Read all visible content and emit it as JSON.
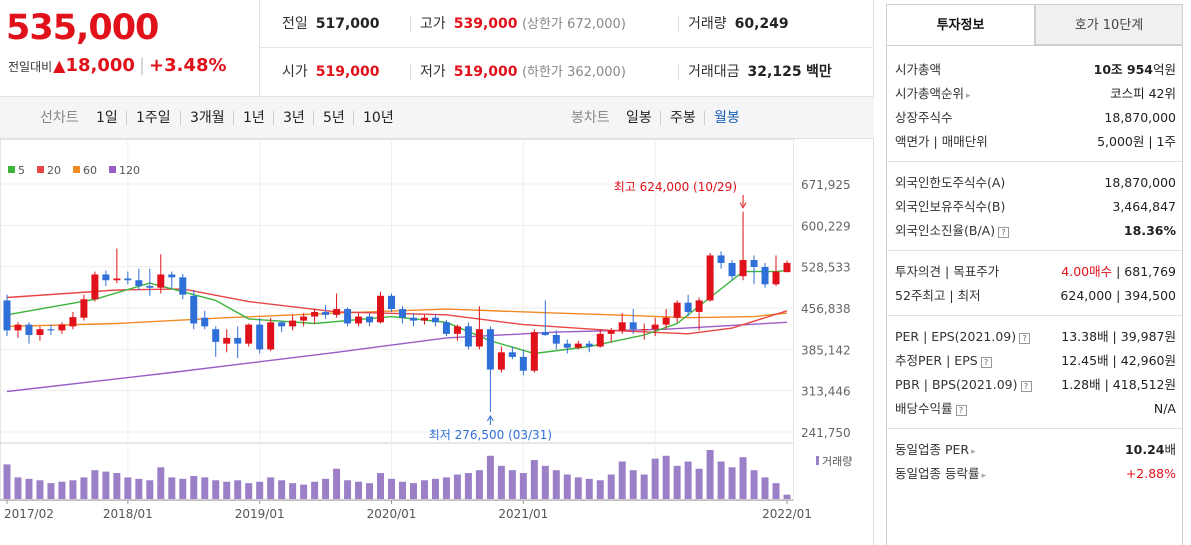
{
  "price": {
    "current": "535,000",
    "change_label": "전일대비",
    "change_arrow": "▲",
    "change_amount": "18,000",
    "change_pct": "+3.48%"
  },
  "info": {
    "prev_close": {
      "label": "전일",
      "value": "517,000"
    },
    "high": {
      "label": "고가",
      "value": "539,000",
      "sub": "(상한가 672,000)"
    },
    "volume": {
      "label": "거래량",
      "value": "60,249"
    },
    "open": {
      "label": "시가",
      "value": "519,000"
    },
    "low": {
      "label": "저가",
      "value": "519,000",
      "sub": "(하한가 362,000)"
    },
    "amount": {
      "label": "거래대금",
      "value": "32,125",
      "unit": "백만"
    }
  },
  "period_tabs": {
    "title": "선차트",
    "items": [
      "1일",
      "1주일",
      "3개월",
      "1년",
      "3년",
      "5년",
      "10년"
    ]
  },
  "candle_tabs": {
    "title": "봉차트",
    "items": [
      "일봉",
      "주봉",
      "월봉"
    ],
    "active": "월봉"
  },
  "chart_data": {
    "type": "candlestick",
    "interval": "monthly",
    "legend": [
      "5",
      "20",
      "60",
      "120"
    ],
    "legend_colors": [
      "#3cb43c",
      "#e84545",
      "#f08a24",
      "#9a5cc6"
    ],
    "up_color": "#e0111a",
    "down_color": "#2f6fd8",
    "y_ticks": [
      671925,
      600229,
      528533,
      456838,
      385142,
      313446,
      241750
    ],
    "ylim": [
      241750,
      671925
    ],
    "x_ticks": [
      "2017/02",
      "2018/01",
      "2019/01",
      "2020/01",
      "2021/01",
      "2022/01"
    ],
    "annotations": {
      "high": {
        "label": "최고",
        "value": "624,000",
        "date": "(10/29)"
      },
      "low": {
        "label": "최저",
        "value": "276,500",
        "date": "(03/31)"
      }
    },
    "volume_label": "거래량",
    "candles": [
      [
        470000,
        480000,
        408000,
        418000
      ],
      [
        418000,
        432000,
        405000,
        428000
      ],
      [
        428000,
        432000,
        395000,
        410000
      ],
      [
        410000,
        425000,
        400000,
        420000
      ],
      [
        420000,
        428000,
        410000,
        418000
      ],
      [
        418000,
        432000,
        412000,
        428000
      ],
      [
        425000,
        450000,
        420000,
        441000
      ],
      [
        440000,
        480000,
        435000,
        472000
      ],
      [
        472000,
        520000,
        468000,
        515000
      ],
      [
        515000,
        522000,
        495000,
        505000
      ],
      [
        505000,
        560000,
        500000,
        508000
      ],
      [
        508000,
        520000,
        498000,
        505000
      ],
      [
        505000,
        525000,
        488000,
        495000
      ],
      [
        495000,
        525000,
        478000,
        492000
      ],
      [
        492000,
        550000,
        482000,
        515000
      ],
      [
        515000,
        520000,
        490000,
        510000
      ],
      [
        510000,
        516000,
        472000,
        480000
      ],
      [
        478000,
        488000,
        420000,
        430000
      ],
      [
        440000,
        452000,
        420000,
        425000
      ],
      [
        420000,
        425000,
        372000,
        398000
      ],
      [
        395000,
        420000,
        380000,
        405000
      ],
      [
        405000,
        425000,
        370000,
        395000
      ],
      [
        395000,
        430000,
        390000,
        428000
      ],
      [
        428000,
        440000,
        378000,
        385000
      ],
      [
        385000,
        440000,
        382000,
        432000
      ],
      [
        432000,
        435000,
        415000,
        425000
      ],
      [
        425000,
        445000,
        418000,
        435000
      ],
      [
        435000,
        448000,
        425000,
        442000
      ],
      [
        442000,
        455000,
        430000,
        450000
      ],
      [
        450000,
        462000,
        438000,
        445000
      ],
      [
        445000,
        482000,
        440000,
        455000
      ],
      [
        455000,
        458000,
        425000,
        430000
      ],
      [
        430000,
        448000,
        425000,
        442000
      ],
      [
        442000,
        448000,
        425000,
        432000
      ],
      [
        432000,
        485000,
        430000,
        478000
      ],
      [
        478000,
        482000,
        450000,
        455000
      ],
      [
        455000,
        460000,
        430000,
        440000
      ],
      [
        440000,
        448000,
        425000,
        435000
      ],
      [
        435000,
        445000,
        428000,
        440000
      ],
      [
        440000,
        446000,
        425000,
        432000
      ],
      [
        432000,
        436000,
        408000,
        412000
      ],
      [
        412000,
        428000,
        400000,
        425000
      ],
      [
        425000,
        432000,
        385000,
        390000
      ],
      [
        390000,
        460000,
        385000,
        420000
      ],
      [
        420000,
        425000,
        276500,
        350000
      ],
      [
        350000,
        390000,
        345000,
        380000
      ],
      [
        380000,
        390000,
        368000,
        372000
      ],
      [
        372000,
        385000,
        340000,
        348000
      ],
      [
        348000,
        420000,
        345000,
        415000
      ],
      [
        415000,
        470000,
        408000,
        410000
      ],
      [
        410000,
        418000,
        385000,
        395000
      ],
      [
        395000,
        402000,
        378000,
        388000
      ],
      [
        388000,
        400000,
        385000,
        395000
      ],
      [
        395000,
        400000,
        380000,
        390000
      ],
      [
        390000,
        420000,
        388000,
        412000
      ],
      [
        412000,
        422000,
        398000,
        418000
      ],
      [
        418000,
        448000,
        412000,
        432000
      ],
      [
        432000,
        455000,
        412000,
        420000
      ],
      [
        420000,
        430000,
        402000,
        420000
      ],
      [
        420000,
        440000,
        408000,
        428000
      ],
      [
        428000,
        455000,
        420000,
        440000
      ],
      [
        440000,
        470000,
        432000,
        466000
      ],
      [
        466000,
        480000,
        442000,
        450000
      ],
      [
        450000,
        475000,
        418000,
        470000
      ],
      [
        470000,
        552000,
        468000,
        548000
      ],
      [
        548000,
        555000,
        525000,
        535000
      ],
      [
        535000,
        540000,
        505000,
        512000
      ],
      [
        512000,
        624000,
        505000,
        540000
      ],
      [
        540000,
        548000,
        498000,
        528000
      ],
      [
        528000,
        535000,
        492000,
        498000
      ],
      [
        498000,
        548000,
        495000,
        520000
      ],
      [
        519000,
        539000,
        519000,
        535000
      ]
    ],
    "ma": {
      "5": [
        [
          0,
          445000
        ],
        [
          8,
          472000
        ],
        [
          13,
          500000
        ],
        [
          19,
          470000
        ],
        [
          22,
          438000
        ],
        [
          28,
          430000
        ],
        [
          35,
          442000
        ],
        [
          40,
          432000
        ],
        [
          44,
          400000
        ],
        [
          48,
          378000
        ],
        [
          53,
          390000
        ],
        [
          58,
          410000
        ],
        [
          61,
          430000
        ],
        [
          64,
          475000
        ],
        [
          67,
          520000
        ],
        [
          70,
          520000
        ],
        [
          71,
          522000
        ]
      ],
      "20": [
        [
          0,
          475000
        ],
        [
          10,
          488000
        ],
        [
          16,
          490000
        ],
        [
          22,
          468000
        ],
        [
          30,
          450000
        ],
        [
          40,
          445000
        ],
        [
          47,
          428000
        ],
        [
          55,
          418000
        ],
        [
          62,
          412000
        ],
        [
          66,
          422000
        ],
        [
          71,
          452000
        ]
      ],
      "60": [
        [
          0,
          425000
        ],
        [
          10,
          430000
        ],
        [
          20,
          440000
        ],
        [
          30,
          448000
        ],
        [
          40,
          455000
        ],
        [
          50,
          448000
        ],
        [
          55,
          445000
        ],
        [
          62,
          440000
        ],
        [
          68,
          442000
        ],
        [
          71,
          448000
        ]
      ],
      "120": [
        [
          0,
          312000
        ],
        [
          15,
          345000
        ],
        [
          30,
          380000
        ],
        [
          40,
          405000
        ],
        [
          50,
          415000
        ],
        [
          60,
          420000
        ],
        [
          71,
          432000
        ]
      ]
    },
    "volumes": [
      48,
      30,
      28,
      26,
      22,
      24,
      26,
      30,
      40,
      38,
      36,
      30,
      28,
      26,
      44,
      30,
      28,
      32,
      30,
      26,
      24,
      26,
      22,
      24,
      30,
      26,
      22,
      20,
      24,
      28,
      42,
      26,
      24,
      22,
      36,
      28,
      24,
      22,
      26,
      28,
      30,
      34,
      36,
      40,
      60,
      46,
      40,
      36,
      54,
      46,
      40,
      34,
      30,
      28,
      26,
      34,
      52,
      40,
      34,
      56,
      60,
      46,
      52,
      42,
      68,
      52,
      44,
      58,
      40,
      30,
      22,
      6
    ]
  },
  "right_panel": {
    "tabs": [
      "투자정보",
      "호가 10단계"
    ],
    "market_cap": {
      "label": "시가총액",
      "value_a": "10조 954",
      "value_b": "억원"
    },
    "market_cap_rank": {
      "label": "시가총액순위",
      "value": "코스피 42위"
    },
    "shares": {
      "label": "상장주식수",
      "value": "18,870,000"
    },
    "par_unit": {
      "label_a": "액면가",
      "label_b": "매매단위",
      "value_a": "5,000원",
      "value_b": "1주"
    },
    "foreign_limit": {
      "label": "외국인한도주식수(A)",
      "value": "18,870,000"
    },
    "foreign_hold": {
      "label": "외국인보유주식수(B)",
      "value": "3,464,847"
    },
    "foreign_rate": {
      "label": "외국인소진율(B/A)",
      "value": "18.36%"
    },
    "opinion": {
      "label_a": "투자의견",
      "label_b": "목표주가",
      "value_a": "4.00매수",
      "value_b": "681,769"
    },
    "week52": {
      "label_a": "52주최고",
      "label_b": "최저",
      "value_a": "624,000",
      "value_b": "394,500"
    },
    "per_eps": {
      "label_a": "PER",
      "label_b": "EPS",
      "label_c": "(2021.09)",
      "value_a": "13.38배",
      "value_b": "39,987원"
    },
    "est_per": {
      "label_a": "추정PER",
      "label_b": "EPS",
      "value_a": "12.45배",
      "value_b": "42,960원"
    },
    "pbr_bps": {
      "label_a": "PBR",
      "label_b": "BPS",
      "label_c": "(2021.09)",
      "value_a": "1.28배",
      "value_b": "418,512원"
    },
    "dividend": {
      "label": "배당수익률",
      "value": "N/A"
    },
    "ind_per": {
      "label": "동일업종 PER",
      "value_a": "10.24",
      "value_b": "배"
    },
    "ind_change": {
      "label": "동일업종 등락률",
      "value": "+2.88%"
    }
  }
}
